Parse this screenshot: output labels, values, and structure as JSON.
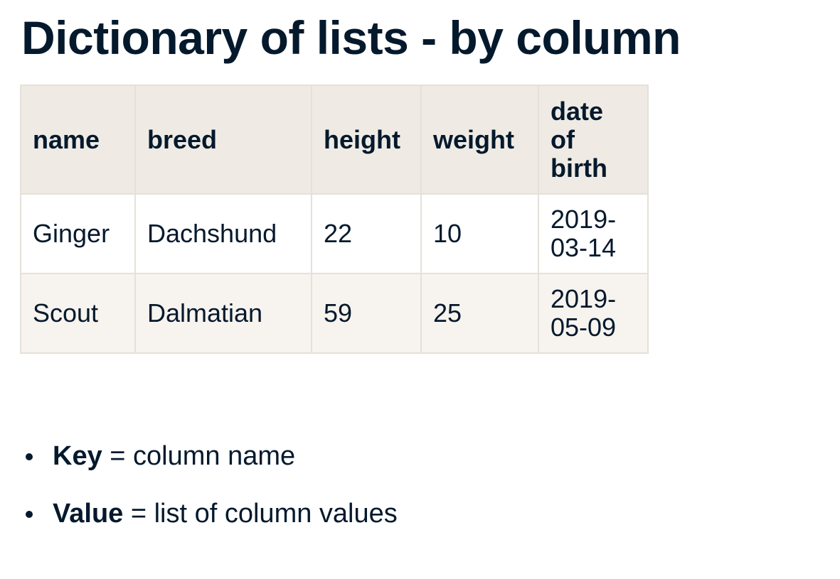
{
  "slide": {
    "title": "Dictionary of lists - by column"
  },
  "table": {
    "headers": [
      "name",
      "breed",
      "height",
      "weight",
      "date of birth"
    ],
    "rows": [
      [
        "Ginger",
        "Dachshund",
        "22",
        "10",
        "2019-03-14"
      ],
      [
        "Scout",
        "Dalmatian",
        "59",
        "25",
        "2019-05-09"
      ]
    ],
    "dob_header_lines": [
      "date",
      "of",
      "birth"
    ],
    "dob_cell_lines": [
      [
        "2019-",
        "03-14"
      ],
      [
        "2019-",
        "05-09"
      ]
    ]
  },
  "bullets": [
    {
      "term": "Key",
      "rest": " = column name"
    },
    {
      "term": "Value",
      "rest": " = list of column values"
    }
  ],
  "colors": {
    "text": "#05192d",
    "header_bg": "#efebe4",
    "row_alt_bg": "#f7f3ee",
    "border": "#e5e1da"
  }
}
